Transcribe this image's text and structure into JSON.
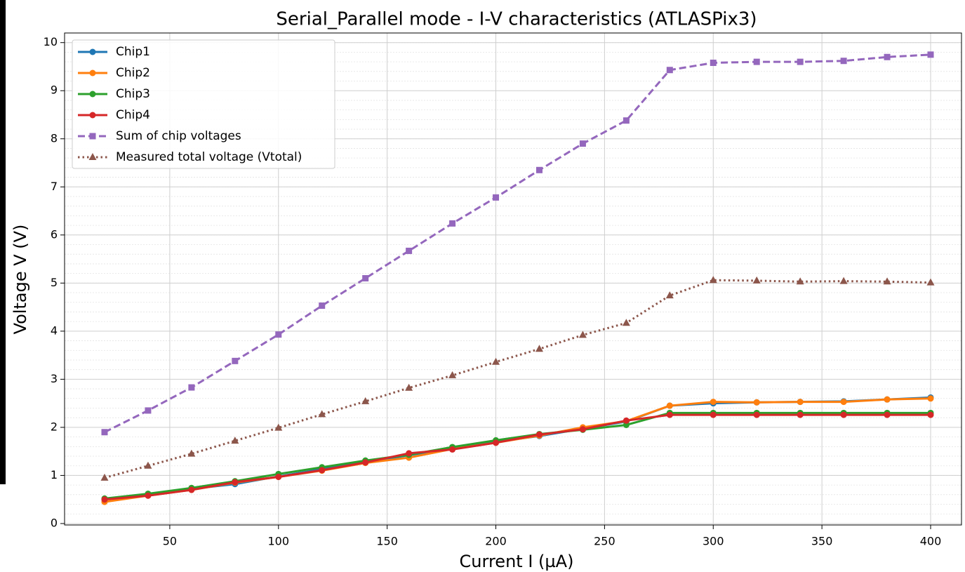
{
  "chart_data": {
    "type": "line",
    "title": "Serial_Parallel mode - I-V characteristics (ATLASPix3)",
    "x_label": "Current I (µA)",
    "y_label": "Voltage V (V)",
    "x": [
      20,
      40,
      60,
      80,
      100,
      120,
      140,
      160,
      180,
      200,
      220,
      240,
      260,
      280,
      300,
      320,
      340,
      360,
      380,
      400
    ],
    "series": [
      {
        "name": "Chip1",
        "color": "#1f77b4",
        "marker": "circle",
        "linestyle": "solid",
        "values": [
          0.5,
          0.6,
          0.72,
          0.82,
          0.98,
          1.13,
          1.28,
          1.42,
          1.57,
          1.7,
          1.82,
          1.97,
          2.12,
          2.45,
          2.5,
          2.52,
          2.53,
          2.54,
          2.58,
          2.62
        ]
      },
      {
        "name": "Chip2",
        "color": "#ff7f0e",
        "marker": "circle",
        "linestyle": "solid",
        "values": [
          0.45,
          0.58,
          0.7,
          0.85,
          0.97,
          1.1,
          1.26,
          1.37,
          1.55,
          1.68,
          1.83,
          2.0,
          2.13,
          2.45,
          2.53,
          2.52,
          2.53,
          2.53,
          2.58,
          2.6
        ]
      },
      {
        "name": "Chip3",
        "color": "#2ca02c",
        "marker": "circle",
        "linestyle": "solid",
        "values": [
          0.52,
          0.62,
          0.74,
          0.88,
          1.03,
          1.17,
          1.31,
          1.43,
          1.59,
          1.73,
          1.86,
          1.95,
          2.05,
          2.3,
          2.3,
          2.3,
          2.3,
          2.3,
          2.3,
          2.3
        ]
      },
      {
        "name": "Chip4",
        "color": "#d62728",
        "marker": "circle",
        "linestyle": "solid",
        "values": [
          0.5,
          0.58,
          0.7,
          0.86,
          0.97,
          1.11,
          1.27,
          1.46,
          1.54,
          1.68,
          1.85,
          1.96,
          2.14,
          2.26,
          2.26,
          2.26,
          2.26,
          2.26,
          2.26,
          2.26
        ]
      },
      {
        "name": "Sum of chip voltages",
        "color": "#9467bd",
        "marker": "square",
        "linestyle": "dashed",
        "values": [
          1.9,
          2.35,
          2.83,
          3.38,
          3.93,
          4.53,
          5.1,
          5.67,
          6.24,
          6.78,
          7.35,
          7.9,
          8.38,
          9.43,
          9.58,
          9.6,
          9.6,
          9.62,
          9.7,
          9.75
        ]
      },
      {
        "name": "Measured total voltage (Vtotal)",
        "color": "#8c564b",
        "marker": "triangle",
        "linestyle": "dotted",
        "values": [
          0.95,
          1.2,
          1.45,
          1.72,
          1.99,
          2.27,
          2.54,
          2.82,
          3.08,
          3.36,
          3.63,
          3.92,
          4.17,
          4.74,
          5.06,
          5.05,
          5.03,
          5.04,
          5.03,
          5.01
        ]
      }
    ],
    "xlim": [
      1.6,
      414.2
    ],
    "xticks": [
      50,
      100,
      150,
      200,
      250,
      300,
      350,
      400
    ],
    "ylim": [
      -0.03,
      10.2
    ],
    "yticks": [
      0,
      1,
      2,
      3,
      4,
      5,
      6,
      7,
      8,
      9,
      10
    ],
    "grid": true,
    "minor_grid": true,
    "legend": "upper left"
  }
}
